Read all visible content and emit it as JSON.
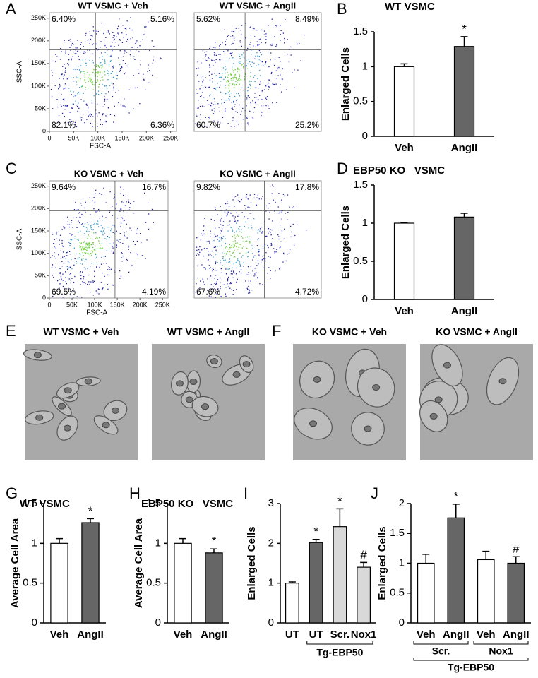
{
  "chart_data": [
    {
      "type": "scatter",
      "panel": "A",
      "title": "WT VSMC + Veh",
      "xlabel": "FSC-A",
      "ylabel": "SSC-A",
      "xlim": [
        0,
        262144
      ],
      "ylim": [
        0,
        262144
      ],
      "xticks": [
        0,
        {
          "value": 50000,
          "label": "50K"
        },
        {
          "value": 100000,
          "label": "100K"
        },
        {
          "value": 150000,
          "label": "150K"
        },
        {
          "value": 200000,
          "label": "200K"
        },
        {
          "value": 250000,
          "label": "250K"
        }
      ],
      "yticks": [
        0,
        {
          "value": 50000,
          "label": "50K"
        },
        {
          "value": 100000,
          "label": "100K"
        },
        {
          "value": 150000,
          "label": "150K"
        },
        {
          "value": 200000,
          "label": "200K"
        },
        {
          "value": 250000,
          "label": "250K"
        }
      ],
      "gate": [
        95000,
        180000
      ],
      "values": [
        6.4,
        5.16,
        82.1,
        6.36
      ],
      "value_labels": [
        "6.40%",
        "5.16%",
        "82.1%",
        "6.36%"
      ]
    },
    {
      "type": "scatter",
      "title": "WT VSMC + AngII",
      "xlim": [
        0,
        262144
      ],
      "ylim": [
        0,
        262144
      ],
      "gate": [
        105000,
        180000
      ],
      "values": [
        5.62,
        8.49,
        60.7,
        25.2
      ],
      "value_labels": [
        "5.62%",
        "8.49%",
        "60.7%",
        "25.2%"
      ]
    },
    {
      "type": "scatter",
      "panel": "C",
      "title": "KO VSMC + Veh",
      "xlabel": "FSC-A",
      "ylabel": "SSC-A",
      "xlim": [
        0,
        262144
      ],
      "ylim": [
        0,
        262144
      ],
      "xticks": [
        0,
        {
          "value": 50000,
          "label": "50K"
        },
        {
          "value": 100000,
          "label": "100K"
        },
        {
          "value": 150000,
          "label": "150K"
        },
        {
          "value": 200000,
          "label": "200K"
        },
        {
          "value": 250000,
          "label": "250K"
        }
      ],
      "yticks": [
        0,
        {
          "value": 50000,
          "label": "50K"
        },
        {
          "value": 100000,
          "label": "100K"
        },
        {
          "value": 150000,
          "label": "150K"
        },
        {
          "value": 200000,
          "label": "200K"
        },
        {
          "value": 250000,
          "label": "250K"
        }
      ],
      "gate": [
        145000,
        195000
      ],
      "values": [
        9.64,
        16.7,
        69.5,
        4.19
      ],
      "value_labels": [
        "9.64%",
        "16.7%",
        "69.5%",
        "4.19%"
      ]
    },
    {
      "type": "scatter",
      "title": "KO VSMC + AngII",
      "xlim": [
        0,
        262144
      ],
      "ylim": [
        0,
        262144
      ],
      "gate": [
        145000,
        195000
      ],
      "values": [
        9.82,
        17.8,
        67.6,
        4.72
      ],
      "value_labels": [
        "9.82%",
        "17.8%",
        "67.6%",
        "4.72%"
      ]
    },
    {
      "type": "bar",
      "panel": "B",
      "title": "WT VSMC",
      "ylabel": "Enlarged Cells",
      "categories": [
        "Veh",
        "AngII"
      ],
      "values": [
        1,
        1.29
      ],
      "errors": [
        0.04,
        0.14
      ],
      "colors": [
        "#ffffff",
        "#666666"
      ],
      "annotations": [
        null,
        "*"
      ],
      "ylim": [
        0,
        1.5
      ],
      "yticks": [
        0,
        0.5,
        1,
        1.5
      ]
    },
    {
      "type": "bar",
      "panel": "D",
      "title": "EBP50 KO   VSMC",
      "ylabel": "Enlarged Cells",
      "categories": [
        "Veh",
        "AngII"
      ],
      "values": [
        1,
        1.08
      ],
      "errors": [
        0.01,
        0.05
      ],
      "colors": [
        "#ffffff",
        "#666666"
      ],
      "ylim": [
        0,
        1.5
      ],
      "yticks": [
        0,
        0.5,
        1,
        1.5
      ]
    },
    {
      "type": "bar",
      "panel": "G",
      "title": "WT VSMC",
      "ylabel": "Average Cell Area",
      "categories": [
        "Veh",
        "AngII"
      ],
      "values": [
        1,
        1.26
      ],
      "errors": [
        0.06,
        0.05
      ],
      "colors": [
        "#ffffff",
        "#666666"
      ],
      "annotations": [
        null,
        "*"
      ],
      "ylim": [
        0,
        1.5
      ],
      "yticks": [
        0,
        0.5,
        1,
        1.5
      ]
    },
    {
      "type": "bar",
      "panel": "H",
      "title": "EBP50 KO   VSMC",
      "ylabel": "Average Cell Area",
      "categories": [
        "Veh",
        "AngII"
      ],
      "values": [
        1,
        0.88
      ],
      "errors": [
        0.06,
        0.05
      ],
      "colors": [
        "#ffffff",
        "#666666"
      ],
      "annotations": [
        null,
        "*"
      ],
      "ylim": [
        0,
        1.5
      ],
      "yticks": [
        0,
        0.5,
        1,
        1.5
      ]
    },
    {
      "type": "bar",
      "panel": "I",
      "ylabel": "Enlarged Cells",
      "categories": [
        "UT",
        "UT",
        "Scr.",
        "Nox1"
      ],
      "values": [
        1,
        2.02,
        2.42,
        1.4
      ],
      "errors": [
        0.03,
        0.08,
        0.45,
        0.12
      ],
      "colors": [
        "#ffffff",
        "#666666",
        "#d9d9d9",
        "#d9d9d9"
      ],
      "annotations": [
        null,
        "*",
        "*",
        "#"
      ],
      "group_label": "Tg-EBP50",
      "ylim": [
        0,
        3
      ],
      "yticks": [
        0,
        1,
        2,
        3
      ]
    },
    {
      "type": "bar",
      "panel": "J",
      "ylabel": "Enlarged Cells",
      "categories": [
        "Veh",
        "AngII",
        "Veh",
        "AngII"
      ],
      "values": [
        1,
        1.76,
        1.06,
        1.0
      ],
      "errors": [
        0.15,
        0.23,
        0.14,
        0.11
      ],
      "colors": [
        "#ffffff",
        "#666666",
        "#ffffff",
        "#666666"
      ],
      "annotations": [
        null,
        "*",
        null,
        "#"
      ],
      "subgroup_labels": [
        "Scr.",
        "Nox1"
      ],
      "group_label": "Tg-EBP50",
      "ylim": [
        0,
        2
      ],
      "yticks": [
        0,
        0.5,
        1,
        1.5,
        2
      ]
    }
  ],
  "micrographs": [
    {
      "panel": "E",
      "titles": [
        "WT VSMC + Veh",
        "WT VSMC + AngII"
      ]
    },
    {
      "panel": "F",
      "titles": [
        "KO VSMC + Veh",
        "KO VSMC + AngII"
      ]
    }
  ]
}
